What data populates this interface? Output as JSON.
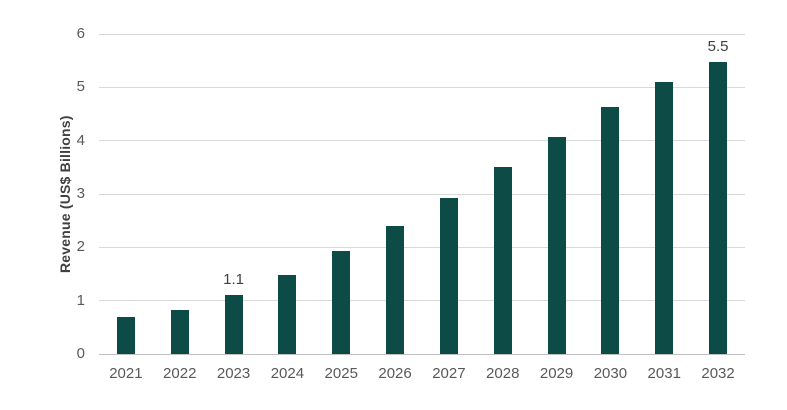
{
  "chart_data": {
    "type": "bar",
    "categories": [
      "2021",
      "2022",
      "2023",
      "2024",
      "2025",
      "2026",
      "2027",
      "2028",
      "2029",
      "2030",
      "2031",
      "2032"
    ],
    "values": [
      0.7,
      0.83,
      1.1,
      1.48,
      1.93,
      2.4,
      2.93,
      3.5,
      4.07,
      4.63,
      5.1,
      5.47
    ],
    "data_labels": {
      "2023": "1.1",
      "2032": "5.5"
    },
    "xlabel": "",
    "ylabel": "Revenue (US$ Billions)",
    "ylim": [
      0,
      6
    ],
    "yticks": [
      0,
      1,
      2,
      3,
      4,
      5,
      6
    ],
    "grid": "horizontal",
    "legend": "none",
    "colors": {
      "bar": "#0d4b46",
      "gridline": "#d9d9d9",
      "axis_line": "#bfbfbf",
      "tick_label": "#595959",
      "axis_title": "#404040",
      "data_label": "#404040",
      "background": "#ffffff"
    }
  }
}
